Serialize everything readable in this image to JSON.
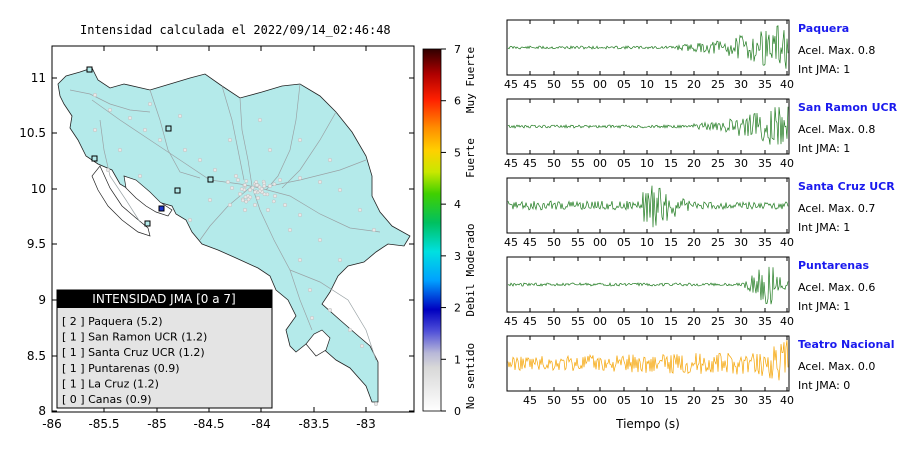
{
  "map": {
    "title": "Intensidad calculada el 2022/09/14_02:46:48",
    "x_ticks": [
      "-86",
      "-85.5",
      "-85",
      "-84.5",
      "-84",
      "-83.5",
      "-83"
    ],
    "y_ticks": [
      "11",
      "10.5",
      "10",
      "9.5",
      "9",
      "8.5",
      "8"
    ],
    "legend_title": "INTENSIDAD JMA [0 a 7]",
    "legend_items": [
      "[ 2 ] Paquera (5.2)",
      "[ 1 ] San Ramon UCR (1.2)",
      "[ 1 ] Santa Cruz UCR (1.2)",
      "[ 1 ] Puntarenas (0.9)",
      "[ 1 ] La Cruz (1.2)",
      "[ 0 ] Canas (0.9)"
    ]
  },
  "colorbar": {
    "ticks": [
      "7",
      "6",
      "5",
      "4",
      "3",
      "2",
      "1",
      "0"
    ],
    "labels": [
      "Muy Fuerte",
      "Fuerte",
      "Moderado",
      "Debil",
      "No sentido"
    ]
  },
  "chart_data": {
    "type": "line",
    "xlabel": "Tiempo (s)",
    "time_ticks": [
      "45",
      "50",
      "55",
      "00",
      "05",
      "10",
      "15",
      "20",
      "25",
      "30",
      "35",
      "40"
    ],
    "panels": [
      {
        "station": "Paquera",
        "acel": "Acel. Max. 0.8",
        "jma": "Int JMA: 1",
        "color": "#1e7a1e",
        "onset": 0.6,
        "peak": 0.8
      },
      {
        "station": "San Ramon UCR",
        "acel": "Acel. Max. 0.8",
        "jma": "Int JMA: 1",
        "color": "#1e7a1e",
        "onset": 0.66,
        "peak": 0.8
      },
      {
        "station": "Santa Cruz UCR",
        "acel": "Acel. Max. 0.7",
        "jma": "Int JMA: 1",
        "color": "#1e7a1e",
        "onset": 0.48,
        "peak": 0.7
      },
      {
        "station": "Puntarenas",
        "acel": "Acel. Max. 0.6",
        "jma": "Int JMA: 1",
        "color": "#1e7a1e",
        "onset": 0.84,
        "peak": 0.6
      },
      {
        "station": "Teatro Nacional",
        "acel": "Acel. Max. 0.0",
        "jma": "Int JMA: 0",
        "color": "#f5a300",
        "onset": 0.0,
        "peak": 0.0
      }
    ]
  }
}
